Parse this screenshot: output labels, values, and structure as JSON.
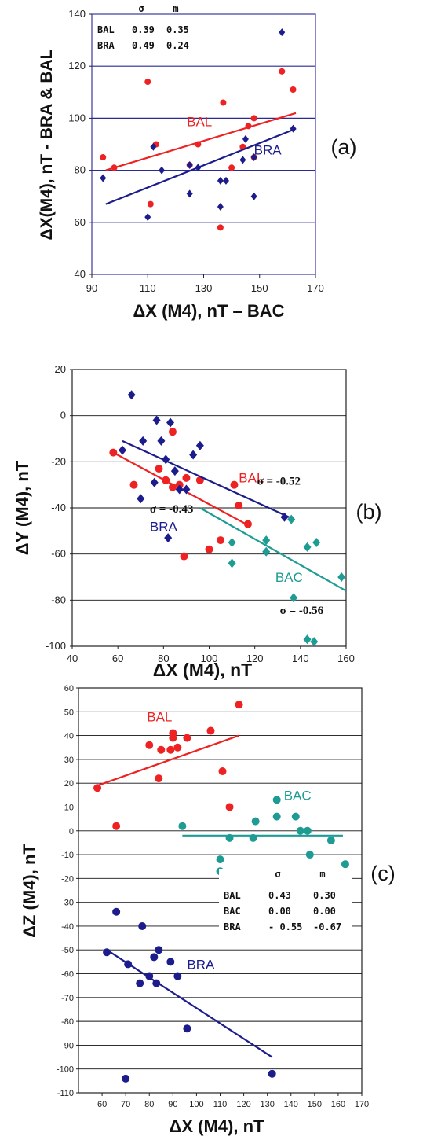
{
  "colors": {
    "BAL": "#ee2222",
    "BRA": "#1c1c8c",
    "BAC": "#1e9c94"
  },
  "chart_data": [
    {
      "panel": "(a)",
      "type": "scatter",
      "xlabel": "ΔX (M4), nT – BAC",
      "ylabel": "ΔX(M4), nT - BRA & BAL",
      "xlim": [
        90,
        170
      ],
      "ylim": [
        40,
        140
      ],
      "xticks": [
        90,
        110,
        130,
        150,
        170
      ],
      "yticks": [
        40,
        60,
        80,
        100,
        120,
        140
      ],
      "gridlines_y": [
        60,
        80,
        100,
        120
      ],
      "table": {
        "headers": [
          "",
          "σ",
          "m"
        ],
        "rows": [
          [
            "BAL",
            "0.39",
            "0.35"
          ],
          [
            "BRA",
            "0.49",
            "0.24"
          ]
        ]
      },
      "series": [
        {
          "name": "BAL",
          "color_key": "BAL",
          "marker": "circle",
          "points": [
            [
              94,
              85
            ],
            [
              98,
              81
            ],
            [
              110,
              114
            ],
            [
              113,
              90
            ],
            [
              111,
              67
            ],
            [
              125,
              82
            ],
            [
              128,
              90
            ],
            [
              137,
              106
            ],
            [
              136,
              58
            ],
            [
              140,
              81
            ],
            [
              144,
              89
            ],
            [
              146,
              97
            ],
            [
              148,
              85
            ],
            [
              148,
              100
            ],
            [
              158,
              118
            ],
            [
              162,
              111
            ]
          ],
          "fit": [
            [
              95,
              80
            ],
            [
              163,
              102
            ]
          ]
        },
        {
          "name": "BRA",
          "color_key": "BRA",
          "marker": "diamond",
          "points": [
            [
              94,
              77
            ],
            [
              110,
              62
            ],
            [
              112,
              89
            ],
            [
              115,
              80
            ],
            [
              125,
              71
            ],
            [
              125,
              82
            ],
            [
              128,
              81
            ],
            [
              136,
              76
            ],
            [
              136,
              66
            ],
            [
              138,
              76
            ],
            [
              144,
              84
            ],
            [
              145,
              92
            ],
            [
              148,
              70
            ],
            [
              148,
              85
            ],
            [
              158,
              133
            ],
            [
              162,
              96
            ]
          ],
          "fit": [
            [
              95,
              67
            ],
            [
              163,
              96
            ]
          ]
        }
      ],
      "series_labels": [
        {
          "text": "BAL",
          "x": 124,
          "y": 97,
          "color_key": "BAL"
        },
        {
          "text": "BRA",
          "x": 148,
          "y": 86,
          "color_key": "BRA"
        }
      ]
    },
    {
      "panel": "(b)",
      "type": "scatter",
      "xlabel": "ΔX (M4), nT",
      "ylabel": "ΔY (M4), nT",
      "xlim": [
        40,
        160
      ],
      "ylim": [
        -100,
        20
      ],
      "xticks": [
        40,
        60,
        80,
        100,
        120,
        140,
        160
      ],
      "yticks": [
        -100,
        -80,
        -60,
        -40,
        -20,
        0,
        20
      ],
      "gridlines_y": [
        -80,
        -60,
        -40,
        -20,
        0
      ],
      "series": [
        {
          "name": "BAL",
          "color_key": "BAL",
          "marker": "circle",
          "points": [
            [
              58,
              -16
            ],
            [
              67,
              -30
            ],
            [
              78,
              -23
            ],
            [
              81,
              -28
            ],
            [
              84,
              -7
            ],
            [
              84,
              -31
            ],
            [
              87,
              -30
            ],
            [
              89,
              -61
            ],
            [
              90,
              -27
            ],
            [
              96,
              -28
            ],
            [
              100,
              -58
            ],
            [
              105,
              -54
            ],
            [
              111,
              -30
            ],
            [
              113,
              -39
            ],
            [
              117,
              -47
            ]
          ],
          "fit": [
            [
              58,
              -16
            ],
            [
              118,
              -48
            ]
          ]
        },
        {
          "name": "BRA",
          "color_key": "BRA",
          "marker": "diamond",
          "points": [
            [
              62,
              -15
            ],
            [
              66,
              9
            ],
            [
              70,
              -36
            ],
            [
              71,
              -11
            ],
            [
              76,
              -29
            ],
            [
              77,
              -2
            ],
            [
              79,
              -11
            ],
            [
              81,
              -19
            ],
            [
              82,
              -53
            ],
            [
              83,
              -3
            ],
            [
              85,
              -24
            ],
            [
              87,
              -32
            ],
            [
              90,
              -32
            ],
            [
              93,
              -17
            ],
            [
              96,
              -13
            ],
            [
              133,
              -44
            ]
          ],
          "fit": [
            [
              62,
              -11
            ],
            [
              135,
              -44
            ]
          ]
        },
        {
          "name": "BAC",
          "color_key": "BAC",
          "marker": "diamond",
          "points": [
            [
              110,
              -55
            ],
            [
              110,
              -64
            ],
            [
              125,
              -54
            ],
            [
              125,
              -59
            ],
            [
              136,
              -45
            ],
            [
              137,
              -79
            ],
            [
              143,
              -97
            ],
            [
              143,
              -57
            ],
            [
              146,
              -98
            ],
            [
              147,
              -55
            ],
            [
              158,
              -70
            ]
          ],
          "fit": [
            [
              96,
              -40
            ],
            [
              160,
              -76
            ]
          ]
        }
      ],
      "series_labels": [
        {
          "text": "BAL",
          "x": 113,
          "y": -29,
          "color_key": "BAL"
        },
        {
          "text": "BRA",
          "x": 74,
          "y": -50,
          "color_key": "BRA"
        },
        {
          "text": "BAC",
          "x": 129,
          "y": -72,
          "color_key": "BAC"
        }
      ],
      "annotations": [
        {
          "text": "σ = -0.52",
          "x": 121,
          "y": -30
        },
        {
          "text": "σ = -0.43",
          "x": 74,
          "y": -42
        },
        {
          "text": "σ = -0.56",
          "x": 131,
          "y": -86
        }
      ]
    },
    {
      "panel": "(c)",
      "type": "scatter",
      "xlabel": "ΔX (M4), nT",
      "ylabel": "ΔZ (M4), nT",
      "xlim": [
        50,
        170
      ],
      "ylim": [
        -110,
        60
      ],
      "xticks": [
        60,
        70,
        80,
        90,
        100,
        110,
        120,
        130,
        140,
        150,
        160,
        170
      ],
      "yticks": [
        -110,
        -100,
        -90,
        -80,
        -70,
        -60,
        -50,
        -40,
        -30,
        -20,
        -10,
        0,
        10,
        20,
        30,
        40,
        50,
        60
      ],
      "gridlines_y": [
        -100,
        -90,
        -80,
        -70,
        -60,
        -50,
        -40,
        -30,
        -20,
        -10,
        0,
        10,
        20,
        30,
        40,
        50
      ],
      "table": {
        "headers": [
          "",
          "σ",
          "m"
        ],
        "rows": [
          [
            "BAL",
            "0.43",
            "0.30"
          ],
          [
            "BAC",
            "0.00",
            "0.00"
          ],
          [
            "BRA",
            "- 0.55",
            "-0.67"
          ]
        ]
      },
      "series": [
        {
          "name": "BAL",
          "color_key": "BAL",
          "marker": "circle",
          "points": [
            [
              58,
              18
            ],
            [
              66,
              2
            ],
            [
              80,
              36
            ],
            [
              84,
              22
            ],
            [
              85,
              34
            ],
            [
              89,
              34
            ],
            [
              90,
              41
            ],
            [
              90,
              39
            ],
            [
              92,
              35
            ],
            [
              96,
              39
            ],
            [
              106,
              42
            ],
            [
              111,
              25
            ],
            [
              114,
              10
            ],
            [
              118,
              53
            ]
          ],
          "fit": [
            [
              58,
              19
            ],
            [
              118,
              40
            ]
          ]
        },
        {
          "name": "BAC",
          "color_key": "BAC",
          "marker": "circle",
          "points": [
            [
              94,
              2
            ],
            [
              110,
              -12
            ],
            [
              110,
              -17
            ],
            [
              114,
              -3
            ],
            [
              124,
              -3
            ],
            [
              125,
              4
            ],
            [
              134,
              13
            ],
            [
              134,
              6
            ],
            [
              142,
              6
            ],
            [
              144,
              0
            ],
            [
              147,
              0
            ],
            [
              148,
              -10
            ],
            [
              157,
              -4
            ],
            [
              163,
              -14
            ]
          ],
          "fit": [
            [
              94,
              -2
            ],
            [
              162,
              -2
            ]
          ]
        },
        {
          "name": "BRA",
          "color_key": "BRA",
          "marker": "circle",
          "points": [
            [
              62,
              -51
            ],
            [
              66,
              -34
            ],
            [
              70,
              -104
            ],
            [
              71,
              -56
            ],
            [
              76,
              -64
            ],
            [
              77,
              -40
            ],
            [
              80,
              -61
            ],
            [
              82,
              -53
            ],
            [
              83,
              -64
            ],
            [
              84,
              -50
            ],
            [
              89,
              -55
            ],
            [
              92,
              -61
            ],
            [
              96,
              -83
            ],
            [
              132,
              -102
            ]
          ],
          "fit": [
            [
              62,
              -50
            ],
            [
              132,
              -95
            ]
          ]
        }
      ],
      "series_labels": [
        {
          "text": "BAL",
          "x": 79,
          "y": 46,
          "color_key": "BAL"
        },
        {
          "text": "BAC",
          "x": 137,
          "y": 13,
          "color_key": "BAC"
        },
        {
          "text": "BRA",
          "x": 96,
          "y": -58,
          "color_key": "BRA"
        }
      ]
    }
  ]
}
